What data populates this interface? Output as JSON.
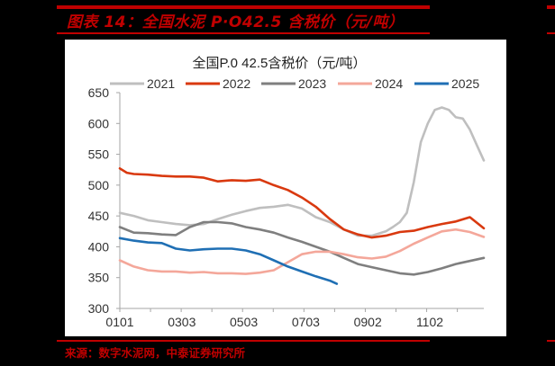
{
  "figure": {
    "title": "图表 14：全国水泥 P·O42.5 含税价（元/吨）",
    "source": "来源：数字水泥网，中泰证券研究所"
  },
  "colors": {
    "accent_red": "#c00000",
    "s2021": "#bfbfbf",
    "s2022": "#d9390f",
    "s2023": "#7f7f7f",
    "s2024": "#f4a79a",
    "s2025": "#1f6fb4"
  },
  "chart_data": {
    "type": "line",
    "title": "全国P.0 42.5含税价（元/吨）",
    "xlabel": "",
    "ylabel": "",
    "ylim": [
      300,
      650
    ],
    "yticks": [
      "650",
      "600",
      "550",
      "500",
      "450",
      "400",
      "350",
      "300"
    ],
    "xtick_labels": [
      "0101",
      "0303",
      "0503",
      "0703",
      "0902",
      "1102"
    ],
    "grid": false,
    "legend_position": "top",
    "legend": [
      "2021",
      "2022",
      "2023",
      "2024",
      "2025"
    ],
    "x_unit": "week index (0 = 0101, 52 = year end)",
    "series": [
      {
        "name": "2021",
        "x": [
          0,
          2,
          4,
          6,
          8,
          10,
          12,
          14,
          16,
          18,
          20,
          22,
          24,
          26,
          28,
          30,
          32,
          34,
          36,
          38,
          39,
          40,
          41,
          42,
          43,
          44,
          45,
          46,
          47,
          48,
          49,
          50,
          51,
          52
        ],
        "values": [
          455,
          450,
          443,
          440,
          437,
          435,
          437,
          445,
          452,
          458,
          463,
          465,
          468,
          462,
          448,
          440,
          428,
          418,
          418,
          425,
          432,
          440,
          455,
          505,
          570,
          600,
          622,
          626,
          622,
          610,
          608,
          590,
          565,
          540
        ]
      },
      {
        "name": "2022",
        "x": [
          0,
          1,
          2,
          4,
          6,
          8,
          10,
          12,
          14,
          16,
          18,
          20,
          22,
          24,
          26,
          28,
          30,
          32,
          34,
          36,
          38,
          40,
          42,
          44,
          46,
          48,
          50,
          52
        ],
        "values": [
          527,
          520,
          518,
          517,
          515,
          514,
          514,
          512,
          506,
          508,
          507,
          509,
          500,
          492,
          480,
          465,
          445,
          428,
          420,
          415,
          418,
          424,
          426,
          432,
          437,
          441,
          448,
          430
        ]
      },
      {
        "name": "2023",
        "x": [
          0,
          2,
          4,
          6,
          8,
          10,
          12,
          14,
          16,
          18,
          20,
          22,
          24,
          26,
          28,
          30,
          32,
          34,
          36,
          38,
          40,
          42,
          44,
          46,
          48,
          50,
          52
        ],
        "values": [
          432,
          423,
          422,
          420,
          419,
          432,
          440,
          440,
          438,
          432,
          428,
          423,
          415,
          408,
          400,
          392,
          382,
          372,
          367,
          362,
          357,
          355,
          359,
          365,
          372,
          377,
          382
        ]
      },
      {
        "name": "2024",
        "x": [
          0,
          2,
          4,
          6,
          8,
          10,
          12,
          14,
          16,
          18,
          20,
          22,
          24,
          26,
          28,
          30,
          32,
          34,
          36,
          38,
          40,
          42,
          44,
          46,
          48,
          50,
          52
        ],
        "values": [
          378,
          368,
          362,
          360,
          360,
          358,
          359,
          357,
          357,
          356,
          358,
          362,
          375,
          388,
          392,
          392,
          388,
          383,
          381,
          384,
          393,
          405,
          415,
          425,
          428,
          424,
          416
        ]
      },
      {
        "name": "2025",
        "x": [
          0,
          2,
          4,
          6,
          8,
          10,
          12,
          14,
          16,
          18,
          20,
          22,
          24,
          26,
          28,
          30,
          31
        ],
        "values": [
          414,
          410,
          407,
          406,
          397,
          394,
          396,
          397,
          397,
          394,
          388,
          378,
          368,
          360,
          352,
          345,
          340
        ]
      }
    ]
  }
}
